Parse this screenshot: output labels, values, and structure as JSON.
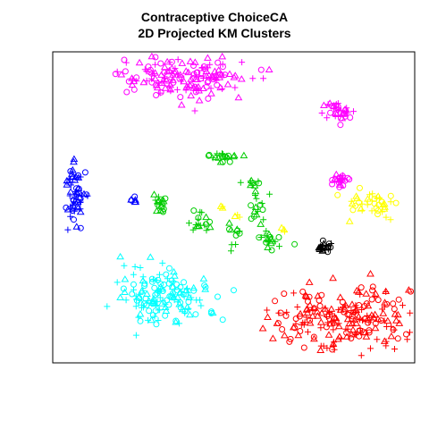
{
  "chart_data": {
    "type": "scatter",
    "title": "Contraceptive ChoiceCA",
    "subtitle": "2D Projected KM Clusters",
    "xlabel": "",
    "ylabel": "",
    "xlim": [
      0,
      1
    ],
    "ylim": [
      0,
      1
    ],
    "axes_visible": false,
    "frame": true,
    "grid": false,
    "marker_styles": [
      "circle",
      "triangle",
      "plus"
    ],
    "clusters": [
      {
        "color": "#FF00FF",
        "center": [
          0.36,
          0.08
        ],
        "spread": [
          0.09,
          0.035
        ],
        "count": 160
      },
      {
        "color": "#FF00FF",
        "center": [
          0.79,
          0.41
        ],
        "spread": [
          0.015,
          0.01
        ],
        "count": 25
      },
      {
        "color": "#FF00FF",
        "center": [
          0.79,
          0.19
        ],
        "spread": [
          0.02,
          0.015
        ],
        "count": 35
      },
      {
        "color": "#0000FF",
        "center": [
          0.06,
          0.45
        ],
        "spread": [
          0.015,
          0.045
        ],
        "count": 60
      },
      {
        "color": "#0000FF",
        "center": [
          0.22,
          0.475
        ],
        "spread": [
          0.008,
          0.008
        ],
        "count": 6
      },
      {
        "color": "#00CC00",
        "center": [
          0.3,
          0.49
        ],
        "spread": [
          0.012,
          0.015
        ],
        "count": 18
      },
      {
        "color": "#00CC00",
        "center": [
          0.48,
          0.335
        ],
        "spread": [
          0.02,
          0.012
        ],
        "count": 20
      },
      {
        "color": "#00CC00",
        "center": [
          0.55,
          0.42
        ],
        "spread": [
          0.012,
          0.01
        ],
        "count": 10
      },
      {
        "color": "#00CC00",
        "center": [
          0.41,
          0.545
        ],
        "spread": [
          0.015,
          0.02
        ],
        "count": 18
      },
      {
        "color": "#00CC00",
        "center": [
          0.57,
          0.49
        ],
        "spread": [
          0.015,
          0.025
        ],
        "count": 15
      },
      {
        "color": "#00CC00",
        "center": [
          0.6,
          0.61
        ],
        "spread": [
          0.02,
          0.015
        ],
        "count": 20
      },
      {
        "color": "#00CC00",
        "center": [
          0.5,
          0.58
        ],
        "spread": [
          0.01,
          0.012
        ],
        "count": 8
      },
      {
        "color": "#00CC00",
        "center": [
          0.5,
          0.62
        ],
        "spread": [
          0.005,
          0.008
        ],
        "count": 3
      },
      {
        "color": "#FFFF00",
        "center": [
          0.88,
          0.49
        ],
        "spread": [
          0.035,
          0.025
        ],
        "count": 40
      },
      {
        "color": "#FFFF00",
        "center": [
          0.46,
          0.5
        ],
        "spread": [
          0.005,
          0.005
        ],
        "count": 3
      },
      {
        "color": "#FFFF00",
        "center": [
          0.51,
          0.53
        ],
        "spread": [
          0.005,
          0.005
        ],
        "count": 3
      },
      {
        "color": "#FFFF00",
        "center": [
          0.64,
          0.57
        ],
        "spread": [
          0.005,
          0.006
        ],
        "count": 3
      },
      {
        "color": "#00FFFF",
        "center": [
          0.3,
          0.78
        ],
        "spread": [
          0.07,
          0.05
        ],
        "count": 150
      },
      {
        "color": "#000000",
        "center": [
          0.75,
          0.63
        ],
        "spread": [
          0.01,
          0.007
        ],
        "count": 22
      },
      {
        "color": "#FF0000",
        "center": [
          0.81,
          0.86
        ],
        "spread": [
          0.1,
          0.055
        ],
        "count": 220
      }
    ]
  }
}
